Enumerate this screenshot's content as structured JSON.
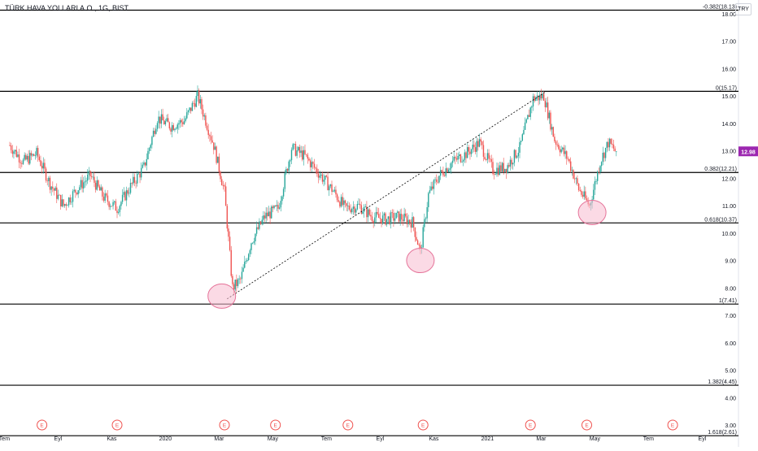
{
  "title": "TÜRK HAVA YOLLARI A.O., 1G, BIST",
  "currency": "TRY",
  "current_price": "12.98",
  "colors": {
    "up": "#26a69a",
    "down": "#ef5350",
    "line": "#000000",
    "ellipse_fill": "#f8bbd0",
    "ellipse_stroke": "#e57399",
    "price_badge": "#9c27b0",
    "axis_text": "#131722"
  },
  "chart_data": {
    "type": "candlestick",
    "title": "TÜRK HAVA YOLLARI A.O., 1G, BIST",
    "ylim": [
      2.2,
      18.5
    ],
    "y_ticks": [
      "3.00",
      "4.00",
      "5.00",
      "6.00",
      "7.00",
      "8.00",
      "9.00",
      "10.00",
      "11.00",
      "12.00",
      "13.00",
      "14.00",
      "15.00",
      "16.00",
      "17.00",
      "18.00"
    ],
    "x_ticks": [
      "Tem",
      "Eyl",
      "Kas",
      "2020",
      "Mar",
      "May",
      "Tem",
      "Eyl",
      "Kas",
      "2021",
      "Mar",
      "May",
      "Tem",
      "Eyl"
    ],
    "fib_levels": [
      {
        "label": "-0.382(18.13)",
        "value": 18.13
      },
      {
        "label": "0(15.17)",
        "value": 15.17
      },
      {
        "label": "0.382(12.21)",
        "value": 12.21
      },
      {
        "label": "0.618(10.37)",
        "value": 10.37
      },
      {
        "label": "1(7.41)",
        "value": 7.41
      },
      {
        "label": "1.382(4.45)",
        "value": 4.45
      },
      {
        "label": "1.618(2.61)",
        "value": 2.61
      }
    ],
    "trendline": {
      "from": {
        "month": 8.1,
        "value": 7.6
      },
      "to": {
        "month": 20.0,
        "value": 15.17
      },
      "style": "dashed"
    },
    "highlights": [
      {
        "month": 7.9,
        "value": 7.7
      },
      {
        "month": 15.3,
        "value": 9.0
      },
      {
        "month": 21.7,
        "value": 10.75
      }
    ],
    "earnings_markers": [
      1.2,
      4.0,
      8.0,
      9.9,
      12.6,
      15.4,
      19.4,
      21.5,
      24.7
    ],
    "earnings_label": "E",
    "last_price": 12.98,
    "price_series_monthly": [
      [
        0,
        13.2
      ],
      [
        0.5,
        12.6
      ],
      [
        1.0,
        12.9
      ],
      [
        1.5,
        11.8
      ],
      [
        2.0,
        11.0
      ],
      [
        2.5,
        11.6
      ],
      [
        3.0,
        12.1
      ],
      [
        3.5,
        11.3
      ],
      [
        4.0,
        10.9
      ],
      [
        4.5,
        11.7
      ],
      [
        5.0,
        12.4
      ],
      [
        5.5,
        14.2
      ],
      [
        6.0,
        13.9
      ],
      [
        6.5,
        14.1
      ],
      [
        7.0,
        15.0
      ],
      [
        7.2,
        14.4
      ],
      [
        7.6,
        13.2
      ],
      [
        8.0,
        11.5
      ],
      [
        8.3,
        8.0
      ],
      [
        8.6,
        8.3
      ],
      [
        9.0,
        9.7
      ],
      [
        9.5,
        10.6
      ],
      [
        10.0,
        10.9
      ],
      [
        10.5,
        13.1
      ],
      [
        11.0,
        12.8
      ],
      [
        11.5,
        12.2
      ],
      [
        12.0,
        11.6
      ],
      [
        12.5,
        10.9
      ],
      [
        13.0,
        11.0
      ],
      [
        13.5,
        10.6
      ],
      [
        14.0,
        10.5
      ],
      [
        14.5,
        10.6
      ],
      [
        15.0,
        10.4
      ],
      [
        15.3,
        9.3
      ],
      [
        15.6,
        11.4
      ],
      [
        16.0,
        12.1
      ],
      [
        16.5,
        12.6
      ],
      [
        17.0,
        12.9
      ],
      [
        17.5,
        13.3
      ],
      [
        18.0,
        12.3
      ],
      [
        18.5,
        12.4
      ],
      [
        19.0,
        13.1
      ],
      [
        19.5,
        14.9
      ],
      [
        19.9,
        15.0
      ],
      [
        20.3,
        13.4
      ],
      [
        20.8,
        12.7
      ],
      [
        21.2,
        11.6
      ],
      [
        21.6,
        11.0
      ],
      [
        22.0,
        12.6
      ],
      [
        22.3,
        13.3
      ],
      [
        22.6,
        12.98
      ]
    ],
    "month_range": [
      0,
      26.8
    ]
  }
}
